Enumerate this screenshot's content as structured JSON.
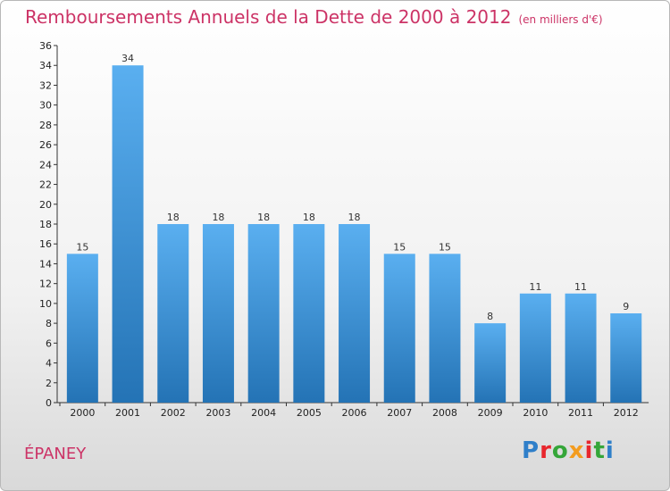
{
  "header": {
    "title": "Remboursements Annuels de la Dette de 2000 à 2012",
    "unit": "(en milliers d'€)"
  },
  "footer": {
    "commune": "ÉPANEY",
    "brand": "Proxiti"
  },
  "colors": {
    "accent": "#cc3366",
    "bar_top": "#5aaff0",
    "bar_bottom": "#2473b5"
  },
  "chart_data": {
    "type": "bar",
    "title": "Remboursements Annuels de la Dette de 2000 à 2012",
    "subtitle": "(en milliers d'€)",
    "xlabel": "",
    "ylabel": "",
    "categories": [
      "2000",
      "2001",
      "2002",
      "2003",
      "2004",
      "2005",
      "2006",
      "2007",
      "2008",
      "2009",
      "2010",
      "2011",
      "2012"
    ],
    "values": [
      15,
      34,
      18,
      18,
      18,
      18,
      18,
      15,
      15,
      8,
      11,
      11,
      9
    ],
    "ylim": [
      0,
      36
    ],
    "yticks": [
      0,
      2,
      4,
      6,
      8,
      10,
      12,
      14,
      16,
      18,
      20,
      22,
      24,
      26,
      28,
      30,
      32,
      34,
      36
    ],
    "grid": false,
    "data_labels": true
  }
}
